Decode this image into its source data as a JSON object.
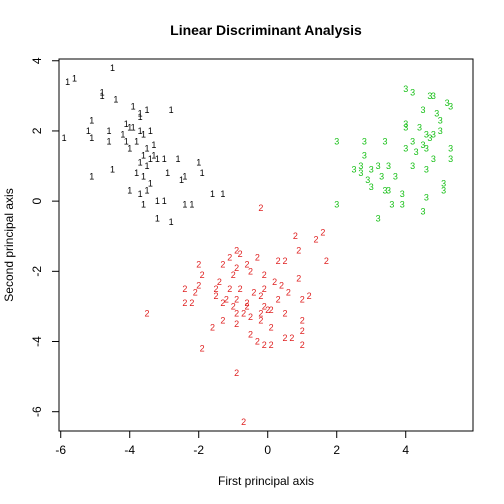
{
  "chart_data": {
    "type": "scatter",
    "title": "Linear Discriminant Analysis",
    "xlabel": "First principal axis",
    "ylabel": "Second principal axis",
    "xlim": [
      -6.05,
      5.95
    ],
    "ylim": [
      -6.55,
      4.05
    ],
    "xticks": [
      -6,
      -4,
      -2,
      0,
      2,
      4
    ],
    "yticks": [
      -6,
      -4,
      -2,
      0,
      2,
      4
    ],
    "grid": false,
    "series": [
      {
        "name": "1",
        "color": "#000000",
        "points": [
          [
            -5.8,
            3.4
          ],
          [
            -5.6,
            3.5
          ],
          [
            -4.5,
            3.8
          ],
          [
            -4.8,
            3.1
          ],
          [
            -4.8,
            3.0
          ],
          [
            -4.4,
            2.9
          ],
          [
            -3.9,
            2.7
          ],
          [
            -3.7,
            2.5
          ],
          [
            -3.5,
            2.6
          ],
          [
            -3.7,
            2.4
          ],
          [
            -2.8,
            2.6
          ],
          [
            -5.1,
            2.3
          ],
          [
            -4.1,
            2.2
          ],
          [
            -4.0,
            2.1
          ],
          [
            -3.9,
            2.1
          ],
          [
            -3.7,
            2.0
          ],
          [
            -3.6,
            1.9
          ],
          [
            -3.4,
            2.0
          ],
          [
            -5.2,
            2.0
          ],
          [
            -4.6,
            2.0
          ],
          [
            -4.2,
            1.9
          ],
          [
            -4.1,
            1.7
          ],
          [
            -5.1,
            1.8
          ],
          [
            -4.6,
            1.7
          ],
          [
            -5.9,
            1.8
          ],
          [
            -3.8,
            1.7
          ],
          [
            -3.3,
            1.6
          ],
          [
            -3.5,
            1.5
          ],
          [
            -4.0,
            1.5
          ],
          [
            -3.3,
            1.3
          ],
          [
            -3.6,
            1.3
          ],
          [
            -3.4,
            1.2
          ],
          [
            -3.2,
            1.2
          ],
          [
            -3.0,
            1.2
          ],
          [
            -2.6,
            1.2
          ],
          [
            -2.0,
            1.1
          ],
          [
            -3.7,
            1.1
          ],
          [
            -3.5,
            1.0
          ],
          [
            -4.5,
            0.9
          ],
          [
            -2.9,
            0.8
          ],
          [
            -3.8,
            0.8
          ],
          [
            -3.6,
            0.7
          ],
          [
            -2.4,
            0.7
          ],
          [
            -1.9,
            0.8
          ],
          [
            -5.1,
            0.7
          ],
          [
            -2.5,
            0.6
          ],
          [
            -3.4,
            0.5
          ],
          [
            -4.0,
            0.3
          ],
          [
            -3.5,
            0.3
          ],
          [
            -1.6,
            0.2
          ],
          [
            -1.3,
            0.2
          ],
          [
            -3.7,
            0.2
          ],
          [
            -3.2,
            0.0
          ],
          [
            -3.0,
            0.0
          ],
          [
            -3.6,
            -0.1
          ],
          [
            -2.4,
            -0.1
          ],
          [
            -2.2,
            -0.1
          ],
          [
            -3.2,
            -0.5
          ],
          [
            -2.8,
            -0.6
          ]
        ]
      },
      {
        "name": "2",
        "color": "#df1f1f",
        "points": [
          [
            -0.2,
            -0.2
          ],
          [
            1.6,
            -0.9
          ],
          [
            1.4,
            -1.1
          ],
          [
            0.8,
            -1.0
          ],
          [
            0.9,
            -1.4
          ],
          [
            -0.9,
            -1.4
          ],
          [
            -0.8,
            -1.5
          ],
          [
            -0.3,
            -1.6
          ],
          [
            -1.1,
            -1.6
          ],
          [
            -0.6,
            -1.8
          ],
          [
            -2.0,
            -1.8
          ],
          [
            -1.3,
            -1.8
          ],
          [
            0.3,
            -1.7
          ],
          [
            0.5,
            -1.7
          ],
          [
            1.7,
            -1.7
          ],
          [
            -0.9,
            -1.9
          ],
          [
            -1.9,
            -2.1
          ],
          [
            -0.5,
            -2.0
          ],
          [
            -0.1,
            -2.1
          ],
          [
            -1.0,
            -2.1
          ],
          [
            0.9,
            -2.2
          ],
          [
            -1.4,
            -2.3
          ],
          [
            0.2,
            -2.3
          ],
          [
            -2.0,
            -2.4
          ],
          [
            -2.4,
            -2.5
          ],
          [
            -0.8,
            -2.5
          ],
          [
            0.4,
            -2.4
          ],
          [
            -1.5,
            -2.5
          ],
          [
            -0.1,
            -2.5
          ],
          [
            0.6,
            -2.6
          ],
          [
            -2.1,
            -2.6
          ],
          [
            -1.1,
            -2.5
          ],
          [
            -0.4,
            -2.6
          ],
          [
            -1.5,
            -2.7
          ],
          [
            -1.2,
            -2.8
          ],
          [
            -1.3,
            -2.9
          ],
          [
            -0.2,
            -2.7
          ],
          [
            0.3,
            -2.8
          ],
          [
            1.2,
            -2.7
          ],
          [
            -0.9,
            -2.8
          ],
          [
            -0.6,
            -2.9
          ],
          [
            1.0,
            -2.8
          ],
          [
            -2.4,
            -2.9
          ],
          [
            -2.2,
            -2.9
          ],
          [
            -1.0,
            -3.0
          ],
          [
            -0.6,
            -3.0
          ],
          [
            -0.1,
            -3.0
          ],
          [
            0.0,
            -3.1
          ],
          [
            0.1,
            -3.1
          ],
          [
            -0.9,
            -3.2
          ],
          [
            -0.7,
            -3.2
          ],
          [
            -0.5,
            -3.3
          ],
          [
            -0.2,
            -3.2
          ],
          [
            0.5,
            -3.2
          ],
          [
            -3.5,
            -3.2
          ],
          [
            -1.3,
            -3.4
          ],
          [
            -0.2,
            -3.4
          ],
          [
            -0.9,
            -3.5
          ],
          [
            0.1,
            -3.6
          ],
          [
            1.0,
            -3.4
          ],
          [
            -1.6,
            -3.6
          ],
          [
            1.0,
            -3.7
          ],
          [
            -0.5,
            -3.8
          ],
          [
            0.5,
            -3.9
          ],
          [
            0.7,
            -3.9
          ],
          [
            -0.3,
            -4.0
          ],
          [
            -0.1,
            -4.1
          ],
          [
            0.1,
            -4.1
          ],
          [
            1.0,
            -4.1
          ],
          [
            -1.9,
            -4.2
          ],
          [
            -0.9,
            -4.9
          ],
          [
            -0.7,
            -6.3
          ]
        ]
      },
      {
        "name": "3",
        "color": "#17c017",
        "points": [
          [
            4.0,
            3.2
          ],
          [
            4.2,
            3.1
          ],
          [
            4.7,
            3.0
          ],
          [
            4.8,
            3.0
          ],
          [
            5.2,
            2.8
          ],
          [
            5.3,
            2.7
          ],
          [
            4.5,
            2.6
          ],
          [
            4.9,
            2.5
          ],
          [
            5.0,
            2.3
          ],
          [
            4.0,
            2.2
          ],
          [
            4.0,
            2.1
          ],
          [
            4.4,
            2.1
          ],
          [
            5.0,
            2.0
          ],
          [
            4.6,
            1.9
          ],
          [
            4.8,
            1.9
          ],
          [
            4.7,
            1.8
          ],
          [
            3.4,
            1.7
          ],
          [
            4.2,
            1.7
          ],
          [
            4.5,
            1.6
          ],
          [
            4.0,
            1.5
          ],
          [
            4.3,
            1.4
          ],
          [
            4.6,
            1.5
          ],
          [
            5.3,
            1.5
          ],
          [
            2.0,
            1.7
          ],
          [
            2.8,
            1.7
          ],
          [
            2.8,
            1.3
          ],
          [
            5.3,
            1.2
          ],
          [
            4.8,
            1.2
          ],
          [
            3.2,
            1.0
          ],
          [
            2.7,
            1.0
          ],
          [
            3.5,
            1.0
          ],
          [
            4.2,
            1.0
          ],
          [
            2.5,
            0.9
          ],
          [
            3.0,
            0.9
          ],
          [
            4.6,
            0.9
          ],
          [
            2.7,
            0.8
          ],
          [
            3.3,
            0.7
          ],
          [
            3.7,
            0.7
          ],
          [
            2.9,
            0.6
          ],
          [
            5.1,
            0.5
          ],
          [
            3.0,
            0.4
          ],
          [
            3.5,
            0.3
          ],
          [
            3.4,
            0.3
          ],
          [
            5.1,
            0.3
          ],
          [
            3.9,
            0.2
          ],
          [
            4.6,
            0.1
          ],
          [
            2.0,
            -0.1
          ],
          [
            3.6,
            -0.1
          ],
          [
            3.9,
            -0.1
          ],
          [
            4.5,
            -0.3
          ],
          [
            3.2,
            -0.5
          ]
        ]
      }
    ]
  }
}
